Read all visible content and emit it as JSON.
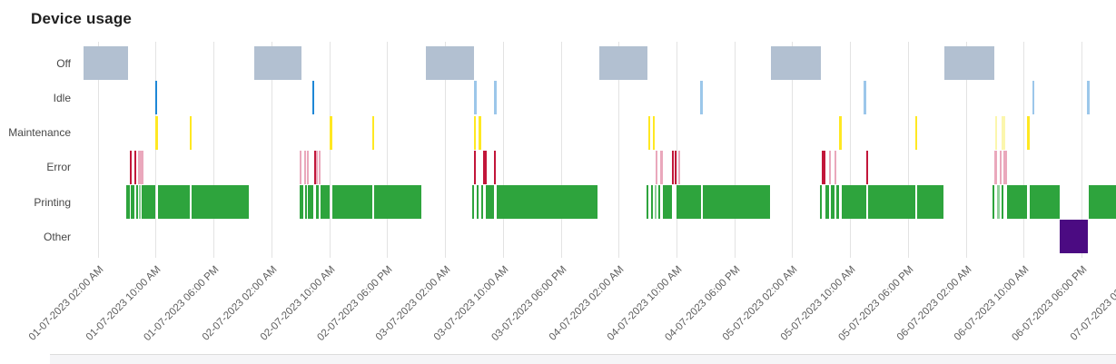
{
  "chart_data": {
    "type": "timeline",
    "title": "Device usage",
    "categories": [
      "Off",
      "Idle",
      "Maintenance",
      "Error",
      "Printing",
      "Other"
    ],
    "time_origin": "01-07-2023 12:00 AM",
    "hours_per_tick": 8,
    "x_range_hours": [
      0,
      142.9
    ],
    "x_tick_labels": [
      "01-07-2023 02:00 AM",
      "01-07-2023 10:00 AM",
      "01-07-2023 06:00 PM",
      "02-07-2023 02:00 AM",
      "02-07-2023 10:00 AM",
      "02-07-2023 06:00 PM",
      "03-07-2023 02:00 AM",
      "03-07-2023 10:00 AM",
      "03-07-2023 06:00 PM",
      "04-07-2023 02:00 AM",
      "04-07-2023 10:00 AM",
      "04-07-2023 06:00 PM",
      "05-07-2023 02:00 AM",
      "05-07-2023 10:00 AM",
      "05-07-2023 06:00 PM",
      "06-07-2023 02:00 AM",
      "06-07-2023 10:00 AM",
      "06-07-2023 06:00 PM",
      "07-07-2023 02:00 AM"
    ],
    "legend": {
      "visible": false
    },
    "grid": {
      "vertical": true,
      "color": "#e3e3e3"
    },
    "colors": {
      "off": "#b2c0d1",
      "idle": "#1e87d6",
      "idle_light": "#9cc7ea",
      "maintenance": "#ffe822",
      "maintenance_pale": "#fbf6ad",
      "error": "#c2163a",
      "error_pink": "#eaa8bc",
      "printing": "#2ea43d",
      "printing_light": "#90d09a",
      "other": "#4b0b82"
    },
    "series": {
      "off": [
        {
          "t": [
            0,
            6.2
          ]
        },
        {
          "t": [
            23.6,
            30.1
          ]
        },
        {
          "t": [
            47.4,
            54.0
          ]
        },
        {
          "t": [
            71.3,
            78.0
          ]
        },
        {
          "t": [
            95.0,
            102.0
          ]
        },
        {
          "t": [
            119.0,
            125.9
          ]
        }
      ],
      "idle": [
        {
          "t": [
            9.95,
            10.15
          ]
        },
        {
          "t": [
            31.65,
            31.95
          ]
        },
        {
          "t": [
            54.05,
            54.35
          ],
          "s": "light"
        },
        {
          "t": [
            56.8,
            57.1
          ],
          "s": "light"
        },
        {
          "t": [
            85.3,
            85.6
          ],
          "s": "light"
        },
        {
          "t": [
            107.9,
            108.2
          ],
          "s": "light"
        },
        {
          "t": [
            131.2,
            131.5
          ],
          "s": "light"
        },
        {
          "t": [
            138.8,
            139.1
          ],
          "s": "light"
        }
      ],
      "maintenance": [
        {
          "t": [
            9.95,
            10.3
          ]
        },
        {
          "t": [
            14.7,
            15.0
          ]
        },
        {
          "t": [
            34.1,
            34.4
          ]
        },
        {
          "t": [
            39.9,
            40.2
          ]
        },
        {
          "t": [
            54.0,
            54.3
          ]
        },
        {
          "t": [
            54.64,
            54.95
          ]
        },
        {
          "t": [
            78.1,
            78.4
          ]
        },
        {
          "t": [
            78.75,
            79.05
          ]
        },
        {
          "t": [
            104.5,
            104.85
          ]
        },
        {
          "t": [
            115.0,
            115.3
          ]
        },
        {
          "t": [
            126.05,
            126.35
          ],
          "s": "pale"
        },
        {
          "t": [
            127.0,
            127.4
          ],
          "s": "pale"
        },
        {
          "t": [
            130.5,
            130.9
          ]
        }
      ],
      "error": [
        {
          "t": [
            6.4,
            6.55
          ]
        },
        {
          "t": [
            7.1,
            7.2
          ]
        },
        {
          "t": [
            7.5,
            7.62
          ],
          "s": "pink"
        },
        {
          "t": [
            7.8,
            7.95
          ],
          "s": "pink"
        },
        {
          "t": [
            8.05,
            8.2
          ],
          "s": "pink"
        },
        {
          "t": [
            29.95,
            30.2
          ],
          "s": "pink"
        },
        {
          "t": [
            30.5,
            30.65
          ],
          "s": "pink"
        },
        {
          "t": [
            30.9,
            31.05
          ],
          "s": "pink"
        },
        {
          "t": [
            31.9,
            32.1
          ]
        },
        {
          "t": [
            32.2,
            32.35
          ],
          "s": "pink"
        },
        {
          "t": [
            32.5,
            32.7
          ],
          "s": "pink"
        },
        {
          "t": [
            54.05,
            54.2
          ]
        },
        {
          "t": [
            55.2,
            55.45
          ]
        },
        {
          "t": [
            55.5,
            55.65
          ]
        },
        {
          "t": [
            56.8,
            57.0
          ]
        },
        {
          "t": [
            79.15,
            79.4
          ],
          "s": "pink"
        },
        {
          "t": [
            79.7,
            80.1
          ],
          "s": "pink"
        },
        {
          "t": [
            81.4,
            81.6
          ]
        },
        {
          "t": [
            81.7,
            81.9
          ]
        },
        {
          "t": [
            82.3,
            82.55
          ],
          "s": "pink"
        },
        {
          "t": [
            102.1,
            102.35
          ]
        },
        {
          "t": [
            102.4,
            102.6
          ]
        },
        {
          "t": [
            103.1,
            103.35
          ],
          "s": "pink"
        },
        {
          "t": [
            103.9,
            104.1
          ],
          "s": "pink"
        },
        {
          "t": [
            108.2,
            108.4
          ]
        },
        {
          "t": [
            126.0,
            126.35
          ],
          "s": "pink"
        },
        {
          "t": [
            126.65,
            126.9
          ],
          "s": "pink"
        },
        {
          "t": [
            127.15,
            127.45
          ],
          "s": "pink"
        },
        {
          "t": [
            127.5,
            127.7
          ],
          "s": "pink"
        }
      ],
      "printing": [
        {
          "t": [
            5.93,
            6.4
          ]
        },
        {
          "t": [
            6.55,
            7.1
          ]
        },
        {
          "t": [
            7.25,
            7.5
          ]
        },
        {
          "t": [
            7.65,
            7.8
          ],
          "s": "light"
        },
        {
          "t": [
            8.0,
            9.95
          ]
        },
        {
          "t": [
            10.3,
            14.7
          ]
        },
        {
          "t": [
            15.0,
            22.9
          ]
        },
        {
          "t": [
            29.9,
            30.45
          ]
        },
        {
          "t": [
            30.65,
            30.9
          ]
        },
        {
          "t": [
            31.05,
            31.85
          ]
        },
        {
          "t": [
            32.1,
            32.5
          ]
        },
        {
          "t": [
            32.75,
            34.1
          ]
        },
        {
          "t": [
            34.42,
            39.9
          ]
        },
        {
          "t": [
            40.2,
            46.75
          ]
        },
        {
          "t": [
            53.8,
            54.0
          ]
        },
        {
          "t": [
            54.35,
            54.6
          ]
        },
        {
          "t": [
            54.95,
            55.2
          ]
        },
        {
          "t": [
            55.65,
            56.8
          ]
        },
        {
          "t": [
            57.1,
            71.1
          ]
        },
        {
          "t": [
            77.9,
            78.1
          ]
        },
        {
          "t": [
            78.45,
            78.75
          ]
        },
        {
          "t": [
            79.05,
            79.15
          ],
          "s": "light"
        },
        {
          "t": [
            79.45,
            79.7
          ]
        },
        {
          "t": [
            80.1,
            81.4
          ]
        },
        {
          "t": [
            81.95,
            85.4
          ]
        },
        {
          "t": [
            85.6,
            95.0
          ]
        },
        {
          "t": [
            101.9,
            102.1
          ]
        },
        {
          "t": [
            102.6,
            103.1
          ]
        },
        {
          "t": [
            103.35,
            103.9
          ]
        },
        {
          "t": [
            104.1,
            104.5
          ]
        },
        {
          "t": [
            104.85,
            108.2
          ]
        },
        {
          "t": [
            108.45,
            115.0
          ]
        },
        {
          "t": [
            115.3,
            118.9
          ]
        },
        {
          "t": [
            125.75,
            126.0
          ]
        },
        {
          "t": [
            126.35,
            126.65
          ],
          "s": "light"
        },
        {
          "t": [
            126.9,
            127.15
          ]
        },
        {
          "t": [
            127.65,
            130.5
          ]
        },
        {
          "t": [
            130.9,
            134.95
          ]
        },
        {
          "t": [
            138.95,
            142.85
          ]
        }
      ],
      "other": [
        {
          "t": [
            134.95,
            138.9
          ]
        }
      ]
    }
  }
}
